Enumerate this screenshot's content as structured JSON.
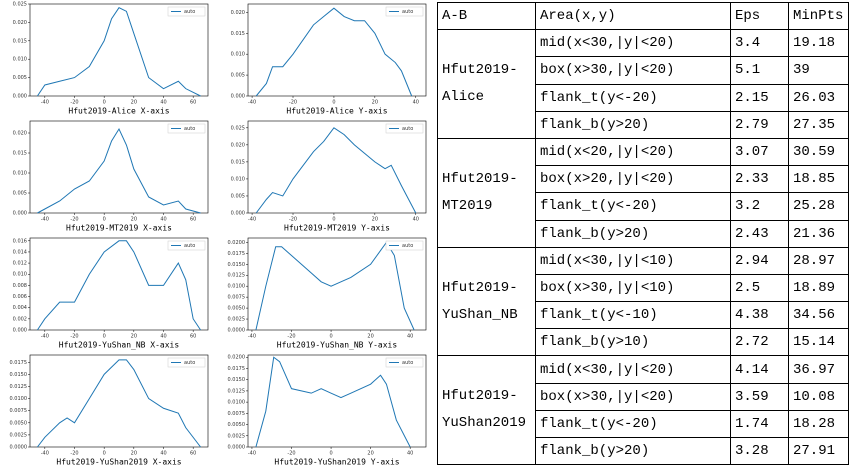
{
  "chart_data": [
    {
      "type": "line",
      "xlabel": "Hfut2019-Alice X-axis",
      "x": [
        -45,
        -40,
        -30,
        -20,
        -10,
        0,
        5,
        10,
        15,
        20,
        30,
        40,
        50,
        55,
        65
      ],
      "series": [
        {
          "name": "auto",
          "color": "#1f77b4",
          "values": [
            0,
            0.003,
            0.004,
            0.005,
            0.008,
            0.015,
            0.021,
            0.024,
            0.023,
            0.017,
            0.005,
            0.002,
            0.004,
            0.002,
            0
          ]
        }
      ],
      "xlim": [
        -50,
        70
      ],
      "xticks": [
        -40,
        -20,
        0,
        20,
        40,
        60
      ],
      "ylim": [
        0,
        0.025
      ],
      "yticks": [
        {
          "value": 0,
          "label": "0.000"
        },
        {
          "value": 0.005,
          "label": "0.005"
        },
        {
          "value": 0.01,
          "label": "0.010"
        },
        {
          "value": 0.015,
          "label": "0.015"
        },
        {
          "value": 0.02,
          "label": "0.020"
        },
        {
          "value": 0.025,
          "label": "0.025"
        }
      ],
      "legend": "upper right"
    },
    {
      "type": "line",
      "xlabel": "Hfut2019-Alice Y-axis",
      "x": [
        -38,
        -33,
        -30,
        -25,
        -20,
        -10,
        -5,
        0,
        5,
        10,
        15,
        20,
        25,
        30,
        33,
        38
      ],
      "series": [
        {
          "name": "auto",
          "color": "#1f77b4",
          "values": [
            0,
            0.003,
            0.007,
            0.007,
            0.01,
            0.017,
            0.019,
            0.021,
            0.019,
            0.018,
            0.018,
            0.015,
            0.01,
            0.008,
            0.006,
            0
          ]
        }
      ],
      "xlim": [
        -42,
        45
      ],
      "xticks": [
        -40,
        -20,
        0,
        20,
        40
      ],
      "ylim": [
        0,
        0.022
      ],
      "yticks": [
        {
          "value": 0,
          "label": "0.000"
        },
        {
          "value": 0.005,
          "label": "0.005"
        },
        {
          "value": 0.01,
          "label": "0.010"
        },
        {
          "value": 0.015,
          "label": "0.015"
        },
        {
          "value": 0.02,
          "label": "0.020"
        }
      ],
      "legend": "upper right"
    },
    {
      "type": "line",
      "xlabel": "Hfut2019-MT2019 X-axis",
      "x": [
        -45,
        -40,
        -30,
        -20,
        -10,
        0,
        5,
        10,
        15,
        20,
        30,
        40,
        50,
        55,
        65
      ],
      "series": [
        {
          "name": "auto",
          "color": "#1f77b4",
          "values": [
            0,
            0.001,
            0.003,
            0.006,
            0.008,
            0.013,
            0.018,
            0.021,
            0.017,
            0.011,
            0.004,
            0.002,
            0.003,
            0.001,
            0
          ]
        }
      ],
      "xlim": [
        -50,
        70
      ],
      "xticks": [
        -40,
        -20,
        0,
        20,
        40,
        60
      ],
      "ylim": [
        0,
        0.023
      ],
      "yticks": [
        {
          "value": 0,
          "label": "0.000"
        },
        {
          "value": 0.005,
          "label": "0.005"
        },
        {
          "value": 0.01,
          "label": "0.010"
        },
        {
          "value": 0.015,
          "label": "0.015"
        },
        {
          "value": 0.02,
          "label": "0.020"
        }
      ],
      "legend": "upper right"
    },
    {
      "type": "line",
      "xlabel": "Hfut2019-MT2019 Y-axis",
      "x": [
        -38,
        -33,
        -30,
        -25,
        -20,
        -10,
        -5,
        0,
        5,
        10,
        20,
        25,
        28,
        33,
        40
      ],
      "series": [
        {
          "name": "auto",
          "color": "#1f77b4",
          "values": [
            0,
            0.004,
            0.006,
            0.005,
            0.01,
            0.018,
            0.021,
            0.025,
            0.023,
            0.02,
            0.015,
            0.013,
            0.014,
            0.008,
            0
          ]
        }
      ],
      "xlim": [
        -42,
        45
      ],
      "xticks": [
        -40,
        -20,
        0,
        20,
        40
      ],
      "ylim": [
        0,
        0.027
      ],
      "yticks": [
        {
          "value": 0,
          "label": "0.000"
        },
        {
          "value": 0.005,
          "label": "0.005"
        },
        {
          "value": 0.01,
          "label": "0.010"
        },
        {
          "value": 0.015,
          "label": "0.015"
        },
        {
          "value": 0.02,
          "label": "0.020"
        },
        {
          "value": 0.025,
          "label": "0.025"
        }
      ],
      "legend": "upper right"
    },
    {
      "type": "line",
      "xlabel": "Hfut2019-YuShan_NB X-axis",
      "x": [
        -45,
        -40,
        -30,
        -20,
        -10,
        0,
        10,
        15,
        20,
        30,
        40,
        50,
        55,
        60,
        65
      ],
      "series": [
        {
          "name": "auto",
          "color": "#1f77b4",
          "values": [
            0,
            0.002,
            0.005,
            0.005,
            0.01,
            0.014,
            0.016,
            0.016,
            0.014,
            0.008,
            0.008,
            0.012,
            0.009,
            0.002,
            0
          ]
        }
      ],
      "xlim": [
        -50,
        70
      ],
      "xticks": [
        -40,
        -20,
        0,
        20,
        40,
        60
      ],
      "ylim": [
        0,
        0.0165
      ],
      "yticks": [
        {
          "value": 0,
          "label": "0.000"
        },
        {
          "value": 0.002,
          "label": "0.002"
        },
        {
          "value": 0.004,
          "label": "0.004"
        },
        {
          "value": 0.006,
          "label": "0.006"
        },
        {
          "value": 0.008,
          "label": "0.008"
        },
        {
          "value": 0.01,
          "label": "0.010"
        },
        {
          "value": 0.012,
          "label": "0.012"
        },
        {
          "value": 0.014,
          "label": "0.014"
        },
        {
          "value": 0.016,
          "label": "0.016"
        }
      ],
      "legend": "upper right"
    },
    {
      "type": "line",
      "xlabel": "Hfut2019-YuShan_NB Y-axis",
      "x": [
        -38,
        -33,
        -28,
        -25,
        -20,
        -10,
        -5,
        0,
        5,
        10,
        20,
        28,
        32,
        37,
        42
      ],
      "series": [
        {
          "name": "auto",
          "color": "#1f77b4",
          "values": [
            0,
            0.01,
            0.019,
            0.019,
            0.017,
            0.013,
            0.011,
            0.01,
            0.011,
            0.012,
            0.015,
            0.02,
            0.017,
            0.005,
            0
          ]
        }
      ],
      "xlim": [
        -42,
        48
      ],
      "xticks": [
        -40,
        -20,
        0,
        20,
        40
      ],
      "ylim": [
        0,
        0.021
      ],
      "yticks": [
        {
          "value": 0,
          "label": "0.0000"
        },
        {
          "value": 0.0025,
          "label": "0.0025"
        },
        {
          "value": 0.005,
          "label": "0.0050"
        },
        {
          "value": 0.0075,
          "label": "0.0075"
        },
        {
          "value": 0.01,
          "label": "0.0100"
        },
        {
          "value": 0.0125,
          "label": "0.0125"
        },
        {
          "value": 0.015,
          "label": "0.0150"
        },
        {
          "value": 0.0175,
          "label": "0.0175"
        },
        {
          "value": 0.02,
          "label": "0.0200"
        }
      ],
      "legend": "upper right"
    },
    {
      "type": "line",
      "xlabel": "Hfut2019-YuShan2019 X-axis",
      "x": [
        -45,
        -40,
        -30,
        -25,
        -20,
        -10,
        0,
        10,
        15,
        20,
        30,
        40,
        50,
        55,
        65
      ],
      "series": [
        {
          "name": "auto",
          "color": "#1f77b4",
          "values": [
            0,
            0.002,
            0.005,
            0.006,
            0.005,
            0.01,
            0.015,
            0.018,
            0.018,
            0.016,
            0.01,
            0.008,
            0.007,
            0.004,
            0
          ]
        }
      ],
      "xlim": [
        -50,
        70
      ],
      "xticks": [
        -40,
        -20,
        0,
        20,
        40,
        60
      ],
      "ylim": [
        0,
        0.019
      ],
      "yticks": [
        {
          "value": 0,
          "label": "0.0000"
        },
        {
          "value": 0.0025,
          "label": "0.0025"
        },
        {
          "value": 0.005,
          "label": "0.0050"
        },
        {
          "value": 0.0075,
          "label": "0.0075"
        },
        {
          "value": 0.01,
          "label": "0.0100"
        },
        {
          "value": 0.0125,
          "label": "0.0125"
        },
        {
          "value": 0.015,
          "label": "0.0150"
        },
        {
          "value": 0.0175,
          "label": "0.0175"
        }
      ],
      "legend": "upper right"
    },
    {
      "type": "line",
      "xlabel": "Hfut2019-YuShan2019 Y-axis",
      "x": [
        -38,
        -33,
        -29,
        -26,
        -20,
        -10,
        -5,
        0,
        5,
        10,
        20,
        25,
        28,
        33,
        40
      ],
      "series": [
        {
          "name": "auto",
          "color": "#1f77b4",
          "values": [
            0,
            0.008,
            0.02,
            0.019,
            0.013,
            0.012,
            0.013,
            0.012,
            0.011,
            0.012,
            0.014,
            0.016,
            0.014,
            0.006,
            0
          ]
        }
      ],
      "xlim": [
        -42,
        48
      ],
      "xticks": [
        -40,
        -20,
        0,
        20,
        40
      ],
      "ylim": [
        0,
        0.0205
      ],
      "yticks": [
        {
          "value": 0,
          "label": "0.0000"
        },
        {
          "value": 0.0025,
          "label": "0.0025"
        },
        {
          "value": 0.005,
          "label": "0.0050"
        },
        {
          "value": 0.0075,
          "label": "0.0075"
        },
        {
          "value": 0.01,
          "label": "0.0100"
        },
        {
          "value": 0.0125,
          "label": "0.0125"
        },
        {
          "value": 0.015,
          "label": "0.0150"
        },
        {
          "value": 0.0175,
          "label": "0.0175"
        },
        {
          "value": 0.02,
          "label": "0.0200"
        }
      ],
      "legend": "upper right"
    }
  ],
  "table": {
    "header": [
      "A-B",
      "Area(x,y)",
      "Eps",
      "MinPts"
    ],
    "groups": [
      {
        "name": "Hfut2019-Alice",
        "rows": [
          [
            "mid(x<30,|y|<20)",
            "3.4",
            "19.18"
          ],
          [
            "box(x>30,|y|<20)",
            "5.1",
            "39"
          ],
          [
            "flank_t(y<-20)",
            "2.15",
            "26.03"
          ],
          [
            "flank_b(y>20)",
            "2.79",
            "27.35"
          ]
        ]
      },
      {
        "name": "Hfut2019-MT2019",
        "rows": [
          [
            "mid(x<20,|y|<20)",
            "3.07",
            "30.59"
          ],
          [
            "box(x>20,|y|<20)",
            "2.33",
            "18.85"
          ],
          [
            "flank_t(y<-20)",
            "3.2",
            "25.28"
          ],
          [
            "flank_b(y>20)",
            "2.43",
            "21.36"
          ]
        ]
      },
      {
        "name": "Hfut2019-YuShan_NB",
        "rows": [
          [
            "mid(x<30,|y|<10)",
            "2.94",
            "28.97"
          ],
          [
            "box(x>30,|y|<10)",
            "2.5",
            "18.89"
          ],
          [
            "flank_t(y<-10)",
            "4.38",
            "34.56"
          ],
          [
            "flank_b(y>10)",
            "2.72",
            "15.14"
          ]
        ]
      },
      {
        "name": "Hfut2019-YuShan2019",
        "rows": [
          [
            "mid(x<30,|y|<20)",
            "4.14",
            "36.97"
          ],
          [
            "box(x>30,|y|<20)",
            "3.59",
            "10.08"
          ],
          [
            "flank_t(y<-20)",
            "1.74",
            "18.28"
          ],
          [
            "flank_b(y>20)",
            "3.28",
            "27.91"
          ]
        ]
      }
    ]
  }
}
